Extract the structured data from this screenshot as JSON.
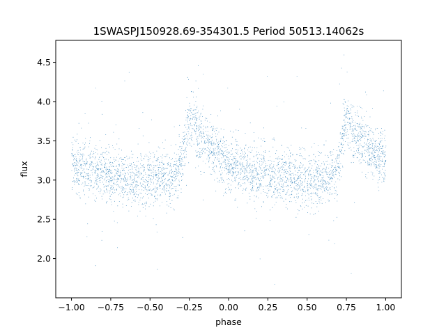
{
  "chart_data": {
    "type": "scatter",
    "title": "1SWASPJ150928.69-354301.5 Period 50513.14062s",
    "xlabel": "phase",
    "ylabel": "flux",
    "xlim": [
      -1.1,
      1.1
    ],
    "ylim": [
      1.5,
      4.78
    ],
    "x_ticks": [
      -1.0,
      -0.75,
      -0.5,
      -0.25,
      0.0,
      0.25,
      0.5,
      0.75,
      1.0
    ],
    "x_tick_labels": [
      "−1.00",
      "−0.75",
      "−0.50",
      "−0.25",
      "0.00",
      "0.25",
      "0.50",
      "0.75",
      "1.00"
    ],
    "y_ticks": [
      2.0,
      2.5,
      3.0,
      3.5,
      4.0,
      4.5
    ],
    "y_tick_labels": [
      "2.0",
      "2.5",
      "3.0",
      "3.5",
      "4.0",
      "4.5"
    ],
    "grid": false,
    "legend": "none",
    "point_color": "#1f77b4",
    "phase_range": [
      -1.0,
      1.0
    ],
    "light_curve": {
      "phase": [
        0.0,
        0.05,
        0.1,
        0.15,
        0.2,
        0.25,
        0.3,
        0.35,
        0.4,
        0.45,
        0.5,
        0.55,
        0.6,
        0.65,
        0.7,
        0.72,
        0.74,
        0.76,
        0.78,
        0.8,
        0.85,
        0.9,
        0.95,
        1.0
      ],
      "flux": [
        3.22,
        3.17,
        3.13,
        3.1,
        3.08,
        3.06,
        3.05,
        3.04,
        3.03,
        3.02,
        3.02,
        3.02,
        3.02,
        3.05,
        3.2,
        3.5,
        3.7,
        3.78,
        3.75,
        3.62,
        3.48,
        3.38,
        3.3,
        3.22
      ],
      "scatter": 0.17
    }
  }
}
